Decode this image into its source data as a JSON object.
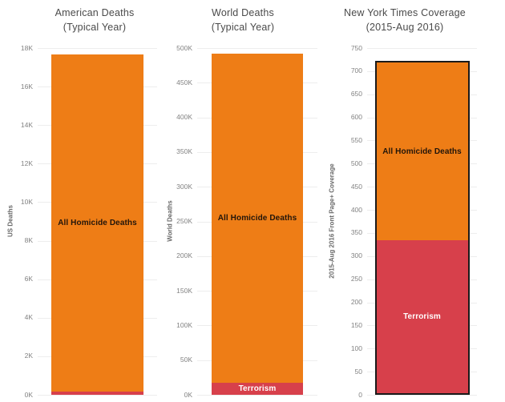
{
  "page": {
    "background": "#ffffff"
  },
  "palette": {
    "orange": "#ee7d16",
    "red": "#d7404b",
    "bar_border": "#1a1a1a",
    "homicide_label_text": "#22150a",
    "terrorism_label_text": "#ffffff",
    "title_text": "#4a4a4a",
    "axis_text": "#828282",
    "gridline": "#ededed"
  },
  "chart_data": [
    {
      "type": "bar",
      "stacked": true,
      "title": "American Deaths (Typical Year)",
      "title_lines": [
        "American Deaths",
        "(Typical Year)"
      ],
      "ylabel": "US Deaths",
      "ylim": [
        0,
        18000
      ],
      "grid": true,
      "legend": "none",
      "bar_outline": false,
      "ticks": [
        {
          "value": 0,
          "label": "0K"
        },
        {
          "value": 2000,
          "label": "2K"
        },
        {
          "value": 4000,
          "label": "4K"
        },
        {
          "value": 6000,
          "label": "6K"
        },
        {
          "value": 8000,
          "label": "8K"
        },
        {
          "value": 10000,
          "label": "10K"
        },
        {
          "value": 12000,
          "label": "12K"
        },
        {
          "value": 14000,
          "label": "14K"
        },
        {
          "value": 16000,
          "label": "16K"
        },
        {
          "value": 18000,
          "label": "18K"
        }
      ],
      "segments": [
        {
          "series": "Terrorism",
          "value": 170,
          "color_key": "red"
        },
        {
          "series": "All Homicide Deaths",
          "value": 17480,
          "color_key": "orange",
          "label": "All Homicide Deaths",
          "label_color_key": "homicide_label_text"
        }
      ],
      "total": 17650
    },
    {
      "type": "bar",
      "stacked": true,
      "title": "World Deaths (Typical Year)",
      "title_lines": [
        "World Deaths",
        "(Typical Year)"
      ],
      "ylabel": "World Deaths",
      "ylim": [
        0,
        500000
      ],
      "grid": true,
      "legend": "none",
      "bar_outline": false,
      "ticks": [
        {
          "value": 0,
          "label": "0K"
        },
        {
          "value": 50000,
          "label": "50K"
        },
        {
          "value": 100000,
          "label": "100K"
        },
        {
          "value": 150000,
          "label": "150K"
        },
        {
          "value": 200000,
          "label": "200K"
        },
        {
          "value": 250000,
          "label": "250K"
        },
        {
          "value": 300000,
          "label": "300K"
        },
        {
          "value": 350000,
          "label": "350K"
        },
        {
          "value": 400000,
          "label": "400K"
        },
        {
          "value": 450000,
          "label": "450K"
        },
        {
          "value": 500000,
          "label": "500K"
        }
      ],
      "segments": [
        {
          "series": "Terrorism",
          "value": 17000,
          "color_key": "red",
          "label": "Terrorism",
          "label_color_key": "terrorism_label_text"
        },
        {
          "series": "All Homicide Deaths",
          "value": 475000,
          "color_key": "orange",
          "label": "All Homicide Deaths",
          "label_color_key": "homicide_label_text"
        }
      ],
      "total": 492000
    },
    {
      "type": "bar",
      "stacked": true,
      "title": "New York Times Coverage (2015-Aug 2016)",
      "title_lines": [
        "New York Times Coverage",
        "(2015-Aug 2016)"
      ],
      "ylabel": "2015-Aug 2016 Front Page+ Coverage",
      "ylim": [
        0,
        750
      ],
      "grid": true,
      "legend": "none",
      "bar_outline": true,
      "ticks": [
        {
          "value": 0,
          "label": "0"
        },
        {
          "value": 50,
          "label": "50"
        },
        {
          "value": 100,
          "label": "100"
        },
        {
          "value": 150,
          "label": "150"
        },
        {
          "value": 200,
          "label": "200"
        },
        {
          "value": 250,
          "label": "250"
        },
        {
          "value": 300,
          "label": "300"
        },
        {
          "value": 350,
          "label": "350"
        },
        {
          "value": 400,
          "label": "400"
        },
        {
          "value": 450,
          "label": "450"
        },
        {
          "value": 500,
          "label": "500"
        },
        {
          "value": 550,
          "label": "550"
        },
        {
          "value": 600,
          "label": "600"
        },
        {
          "value": 650,
          "label": "650"
        },
        {
          "value": 700,
          "label": "700"
        },
        {
          "value": 750,
          "label": "750"
        }
      ],
      "segments": [
        {
          "series": "Terrorism",
          "value": 334,
          "color_key": "red",
          "label": "Terrorism",
          "label_color_key": "terrorism_label_text"
        },
        {
          "series": "All Homicide Deaths",
          "value": 388,
          "color_key": "orange",
          "label": "All Homicide Deaths",
          "label_color_key": "homicide_label_text"
        }
      ],
      "total": 722
    }
  ]
}
